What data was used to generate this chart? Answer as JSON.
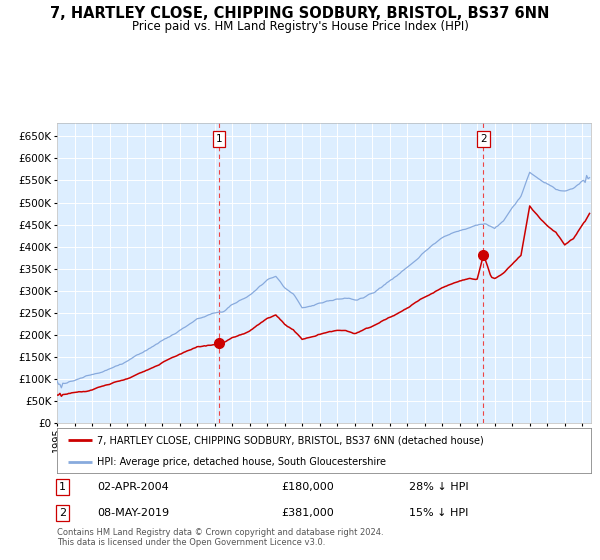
{
  "title1": "7, HARTLEY CLOSE, CHIPPING SODBURY, BRISTOL, BS37 6NN",
  "title2": "Price paid vs. HM Land Registry's House Price Index (HPI)",
  "legend1": "7, HARTLEY CLOSE, CHIPPING SODBURY, BRISTOL, BS37 6NN (detached house)",
  "legend2": "HPI: Average price, detached house, South Gloucestershire",
  "label1_date": "02-APR-2004",
  "label1_price": "£180,000",
  "label1_hpi": "28% ↓ HPI",
  "label2_date": "08-MAY-2019",
  "label2_price": "£381,000",
  "label2_hpi": "15% ↓ HPI",
  "footer": "Contains HM Land Registry data © Crown copyright and database right 2024.\nThis data is licensed under the Open Government Licence v3.0.",
  "marker1_year": 2004.25,
  "marker1_val_red": 180000,
  "marker2_year": 2019.36,
  "marker2_val_red": 381000,
  "plot_color_red": "#cc0000",
  "plot_color_blue": "#88aadd",
  "bg_color": "#ddeeff",
  "grid_color": "#ffffff",
  "ylim_max": 680000,
  "xlim_start": 1995.0,
  "xlim_end": 2025.5
}
